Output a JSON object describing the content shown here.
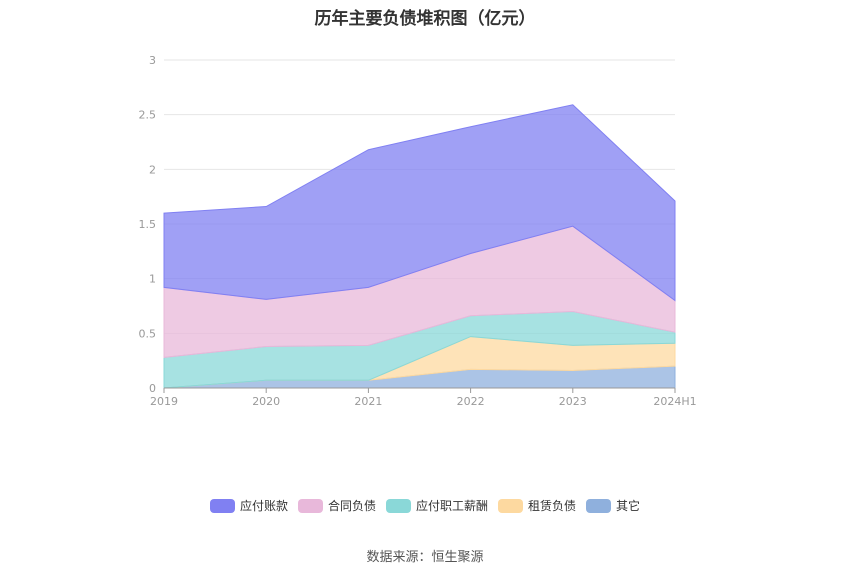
{
  "chart_data": {
    "type": "area",
    "title": "历年主要负债堆积图（亿元）",
    "stacked": true,
    "categories": [
      "2019",
      "2020",
      "2021",
      "2022",
      "2023",
      "2024H1"
    ],
    "ylim": [
      0,
      3
    ],
    "yticks": [
      "0",
      "0.5",
      "1",
      "1.5",
      "2",
      "2.5",
      "3"
    ],
    "grid": true,
    "legend_position": "bottom",
    "series": [
      {
        "name": "其它",
        "color": "#8fb0dd",
        "values": [
          0.0,
          0.07,
          0.07,
          0.17,
          0.16,
          0.2
        ]
      },
      {
        "name": "租赁负债",
        "color": "#fdd9a0",
        "values": [
          0.0,
          0.0,
          0.0,
          0.3,
          0.23,
          0.21
        ]
      },
      {
        "name": "应付职工薪酬",
        "color": "#8ad8d8",
        "values": [
          0.28,
          0.31,
          0.32,
          0.19,
          0.31,
          0.1
        ]
      },
      {
        "name": "合同负债",
        "color": "#e8b8da",
        "values": [
          0.64,
          0.43,
          0.53,
          0.57,
          0.78,
          0.29
        ]
      },
      {
        "name": "应付账款",
        "color": "#8080f2",
        "values": [
          0.68,
          0.85,
          1.26,
          1.16,
          1.11,
          0.91
        ]
      }
    ],
    "legend_order": [
      "应付账款",
      "合同负债",
      "应付职工薪酬",
      "租赁负债",
      "其它"
    ]
  },
  "source": "数据来源：恒生聚源"
}
